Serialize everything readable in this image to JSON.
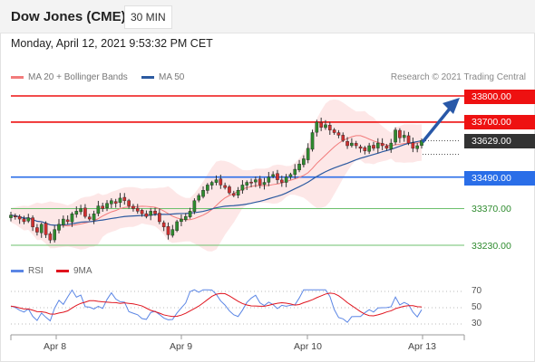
{
  "header": {
    "title": "Dow Jones (CME)",
    "interval": "30 MIN"
  },
  "datetime": "Monday, April 12, 2021 9:53:32 PM CET",
  "legend": {
    "ma20": {
      "label": "MA 20 + Bollinger Bands",
      "color": "#f27b7b"
    },
    "ma50": {
      "label": "MA 50",
      "color": "#2c5aa0"
    }
  },
  "research": "Research © 2021 Trading Central",
  "levels": [
    {
      "label": "33800.00",
      "value": 33800,
      "kind": "resistance",
      "color": "#ee1111"
    },
    {
      "label": "33700.00",
      "value": 33700,
      "kind": "resistance",
      "color": "#ee1111"
    },
    {
      "label": "33629.00",
      "value": 33629,
      "kind": "current",
      "color": "#333333"
    },
    {
      "label": "33490.00",
      "value": 33490,
      "kind": "pivot",
      "color": "#2a6ee8"
    },
    {
      "label": "33370.00",
      "value": 33370,
      "kind": "support",
      "color": "#6cc06c"
    },
    {
      "label": "33230.00",
      "value": 33230,
      "kind": "support",
      "color": "#6cc06c"
    }
  ],
  "rsi_legend": {
    "rsi": {
      "label": "RSI",
      "color": "#5b86e5"
    },
    "ma9": {
      "label": "9MA",
      "color": "#e0141e"
    }
  },
  "rsi_ticks": [
    "70",
    "50",
    "30"
  ],
  "x_ticks": [
    "Apr 8",
    "Apr 9",
    "Apr 10",
    "Apr 13"
  ],
  "colors": {
    "up": "#2e8b2e",
    "down": "#d03030",
    "arrow": "#2858a8",
    "band": "#fde3e3"
  },
  "chart_data": {
    "type": "candlestick",
    "price_axis": [
      33200,
      33830
    ],
    "x_labels": [
      "Apr 8",
      "Apr 9",
      "Apr 10",
      "Apr 13"
    ],
    "close_series": [
      33345,
      33340,
      33330,
      33320,
      33335,
      33300,
      33280,
      33310,
      33270,
      33250,
      33290,
      33310,
      33330,
      33320,
      33350,
      33360,
      33370,
      33340,
      33330,
      33350,
      33380,
      33370,
      33390,
      33400,
      33390,
      33410,
      33400,
      33380,
      33370,
      33360,
      33350,
      33340,
      33360,
      33350,
      33320,
      33300,
      33270,
      33290,
      33320,
      33330,
      33340,
      33360,
      33400,
      33420,
      33440,
      33460,
      33470,
      33480,
      33460,
      33450,
      33430,
      33420,
      33440,
      33460,
      33470,
      33470,
      33480,
      33460,
      33470,
      33490,
      33500,
      33480,
      33470,
      33490,
      33500,
      33520,
      33540,
      33560,
      33600,
      33660,
      33700,
      33680,
      33690,
      33670,
      33660,
      33650,
      33630,
      33610,
      33620,
      33610,
      33600,
      33590,
      33610,
      33600,
      33620,
      33610,
      33600,
      33620,
      33670,
      33640,
      33650,
      33620,
      33600,
      33610,
      33630
    ],
    "rsi": {
      "ylim": [
        20,
        80
      ],
      "levels": [
        30,
        50,
        70
      ]
    }
  }
}
